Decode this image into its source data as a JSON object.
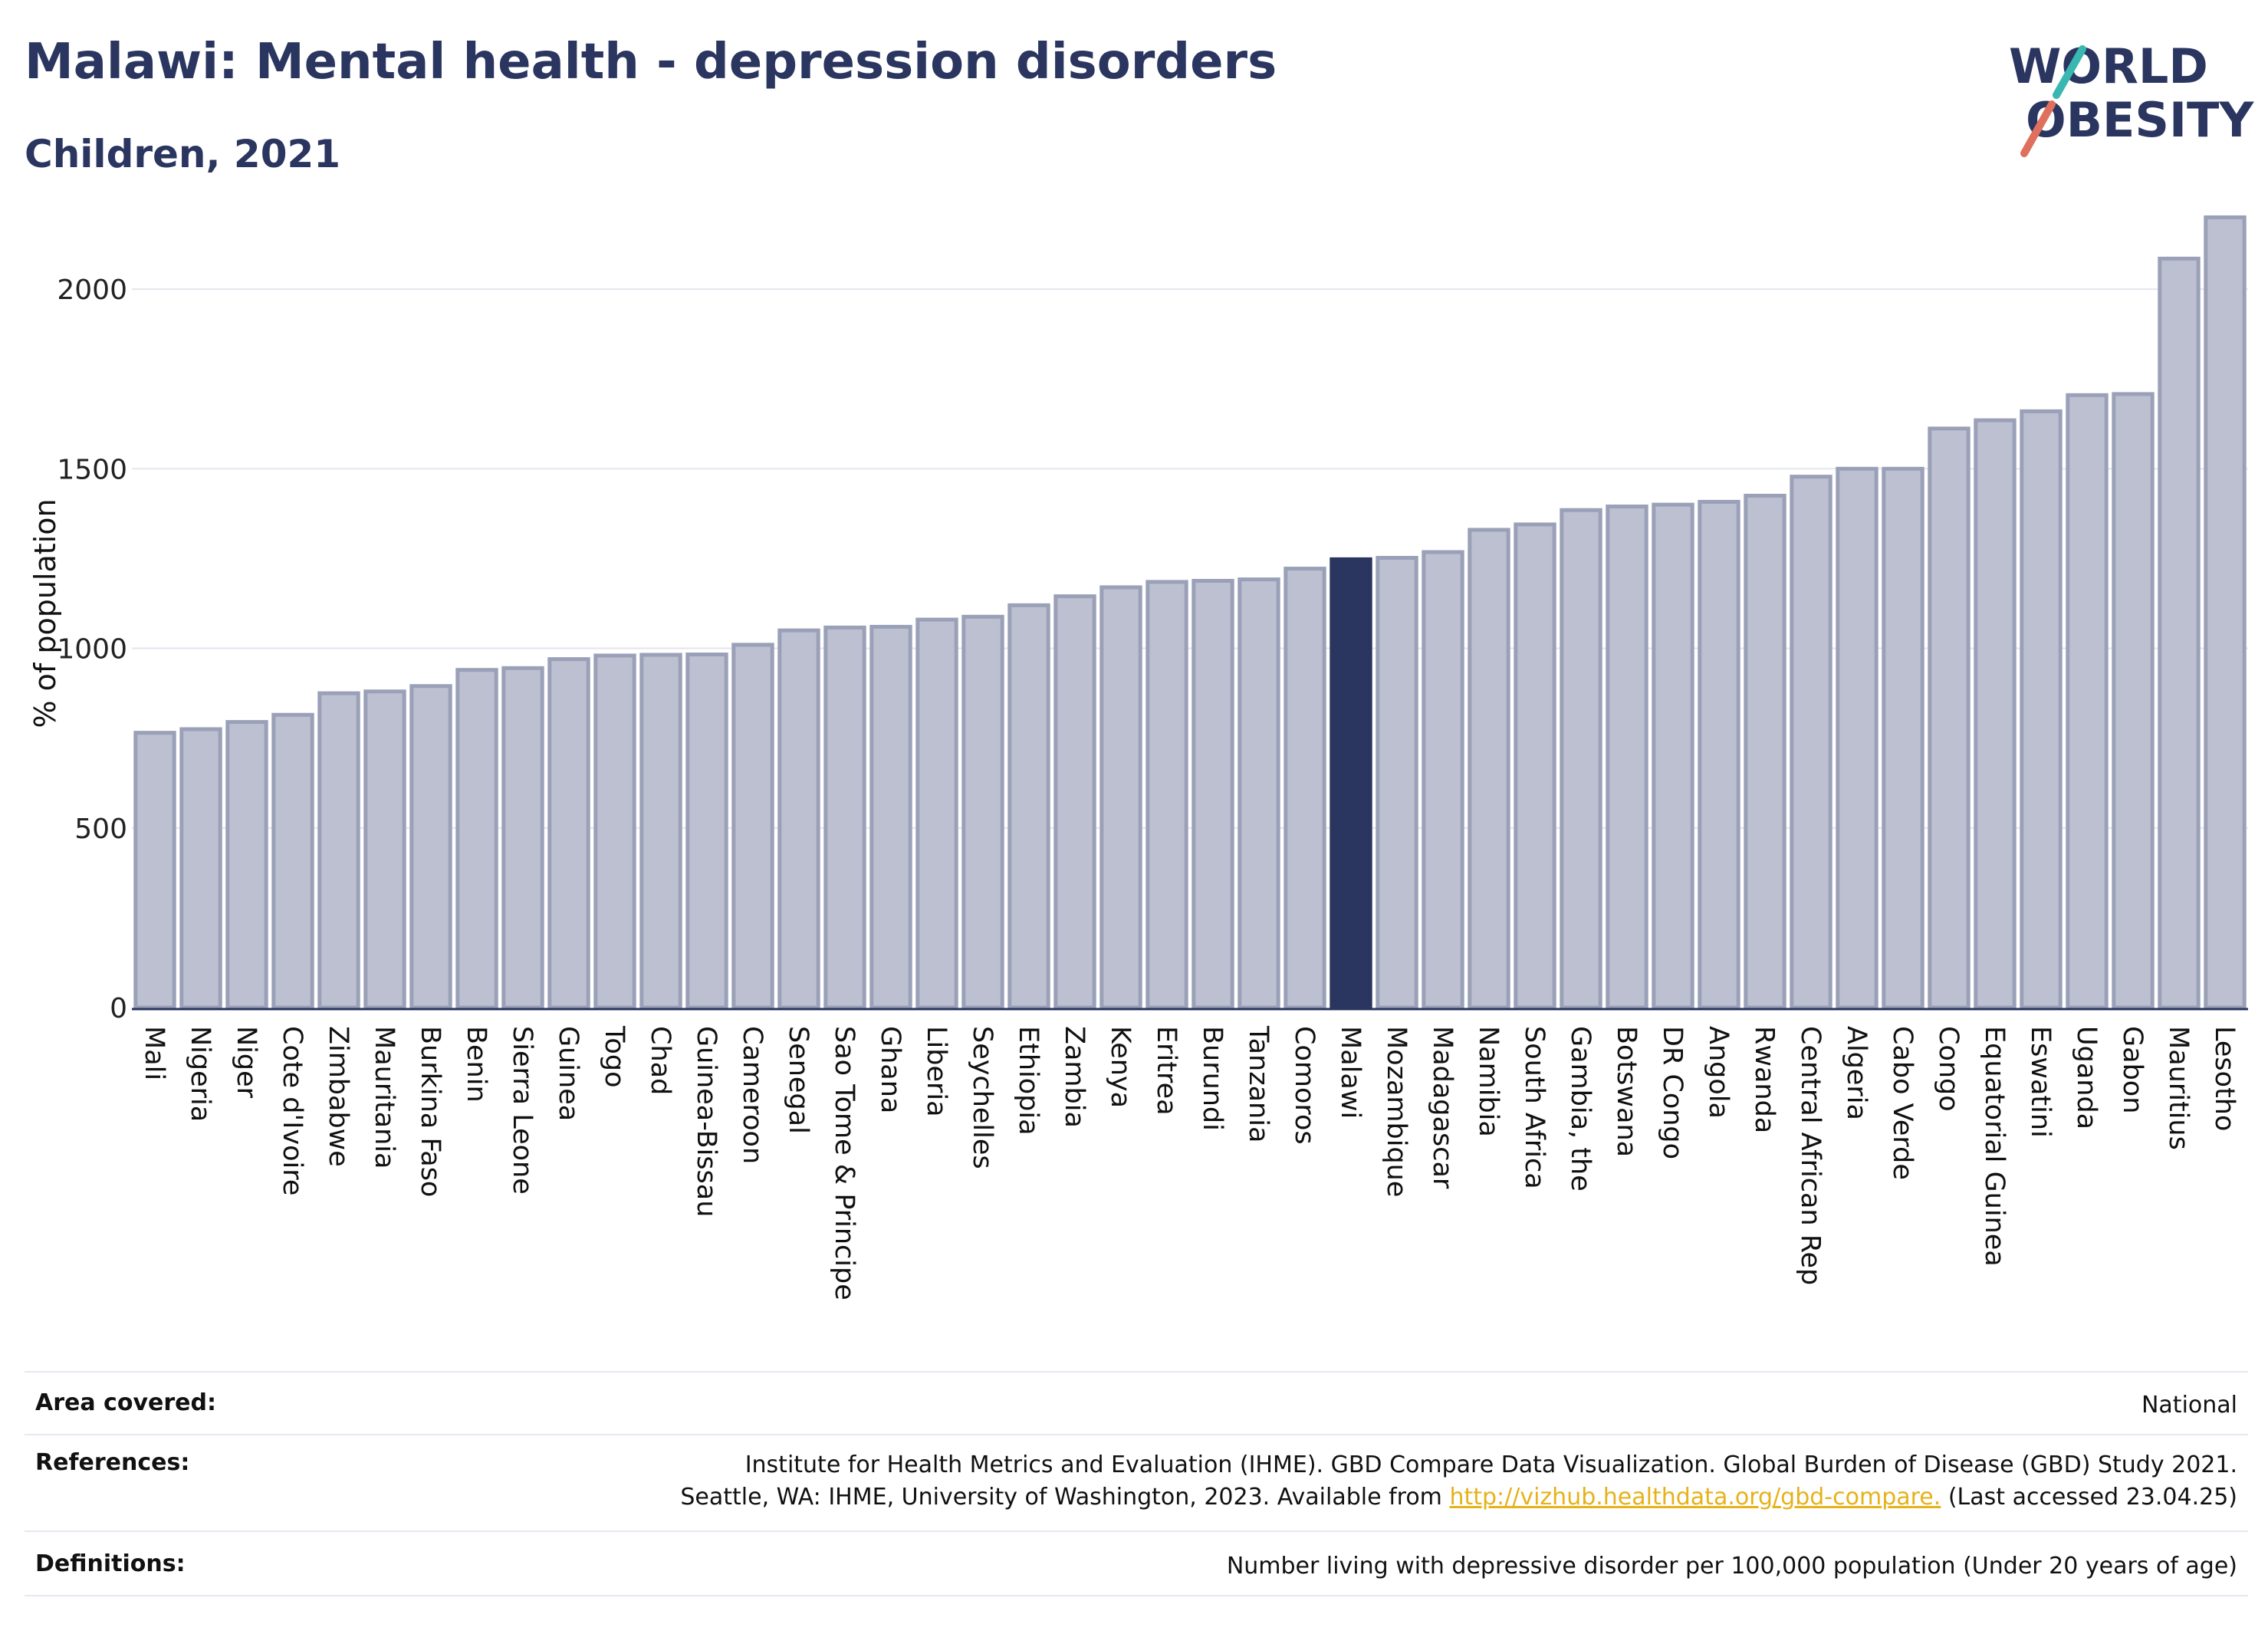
{
  "title": "Malawi: Mental health - depression disorders",
  "subtitle": "Children, 2021",
  "logo": {
    "line1": "WORLD",
    "line2": "OBESITY"
  },
  "colors": {
    "bar": "#bcc0d0",
    "bar_border": "#9aa0b8",
    "highlight": "#2a3560",
    "grid": "#e4e6ee",
    "axis": "#2a3560",
    "link": "#e6b21a"
  },
  "chart_data": {
    "type": "bar",
    "ylabel": "% of population",
    "ylim": [
      0,
      2250
    ],
    "yticks": [
      0,
      500,
      1000,
      1500,
      2000
    ],
    "highlight": "Malawi",
    "categories": [
      "Mali",
      "Nigeria",
      "Niger",
      "Cote d'Ivoire",
      "Zimbabwe",
      "Mauritania",
      "Burkina Faso",
      "Benin",
      "Sierra Leone",
      "Guinea",
      "Togo",
      "Chad",
      "Guinea-Bissau",
      "Cameroon",
      "Senegal",
      "Sao Tome & Principe",
      "Ghana",
      "Liberia",
      "Seychelles",
      "Ethiopia",
      "Zambia",
      "Kenya",
      "Eritrea",
      "Burundi",
      "Tanzania",
      "Comoros",
      "Malawi",
      "Mozambique",
      "Madagascar",
      "Namibia",
      "South Africa",
      "Gambia, the",
      "Botswana",
      "DR Congo",
      "Angola",
      "Rwanda",
      "Central African Rep",
      "Algeria",
      "Cabo Verde",
      "Congo",
      "Equatorial Guinea",
      "Eswatini",
      "Uganda",
      "Gabon",
      "Mauritius",
      "Lesotho"
    ],
    "values": [
      765,
      775,
      795,
      815,
      875,
      880,
      895,
      940,
      945,
      970,
      980,
      982,
      983,
      1010,
      1050,
      1058,
      1060,
      1080,
      1088,
      1120,
      1145,
      1170,
      1185,
      1188,
      1192,
      1222,
      1248,
      1252,
      1268,
      1330,
      1345,
      1385,
      1395,
      1400,
      1408,
      1425,
      1478,
      1500,
      1500,
      1612,
      1635,
      1660,
      1705,
      1708,
      2085,
      2200
    ]
  },
  "info": {
    "area_label": "Area covered:",
    "area_value": "National",
    "references_label": "References:",
    "references_line1": "Institute for Health Metrics and Evaluation (IHME). GBD Compare Data Visualization. Global Burden of Disease (GBD) Study 2021.",
    "references_line2_pre": "Seattle, WA: IHME, University of Washington, 2023. Available from ",
    "references_link": "http://vizhub.healthdata.org/gbd-compare.",
    "references_line2_post": " (Last accessed 23.04.25)",
    "definitions_label": "Definitions:",
    "definitions_value": "Number living with depressive disorder per 100,000 population (Under 20 years of age)"
  }
}
